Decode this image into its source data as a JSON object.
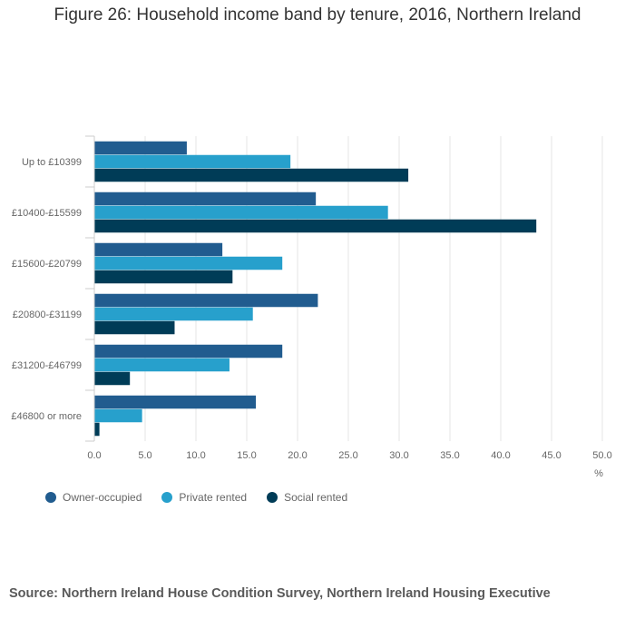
{
  "title": "Figure 26: Household income band by tenure, 2016, Northern Ireland",
  "source": "Source: Northern Ireland House Condition Survey, Northern Ireland Housing Executive",
  "chart_data": {
    "type": "bar",
    "orientation": "horizontal",
    "title": "Figure 26: Household income band by tenure, 2016, Northern Ireland",
    "categories": [
      "Up to £10399",
      "£10400-£15599",
      "£15600-£20799",
      "£20800-£31199",
      "£31200-£46799",
      "£46800 or more"
    ],
    "series": [
      {
        "name": "Owner-occupied",
        "color": "#215c8f",
        "values": [
          9.1,
          21.8,
          12.6,
          22.0,
          18.5,
          15.9
        ]
      },
      {
        "name": "Private rented",
        "color": "#27a0cc",
        "values": [
          19.3,
          28.9,
          18.5,
          15.6,
          13.3,
          4.7
        ]
      },
      {
        "name": "Social rented",
        "color": "#003c57",
        "values": [
          30.9,
          43.5,
          13.6,
          7.9,
          3.5,
          0.5
        ]
      }
    ],
    "xlim": [
      0,
      50
    ],
    "xticks": [
      "0.0",
      "5.0",
      "10.0",
      "15.0",
      "20.0",
      "25.0",
      "30.0",
      "35.0",
      "40.0",
      "45.0",
      "50.0"
    ],
    "xlabel": "%",
    "ylabel": "",
    "grid": true,
    "legend_position": "bottom-left"
  }
}
